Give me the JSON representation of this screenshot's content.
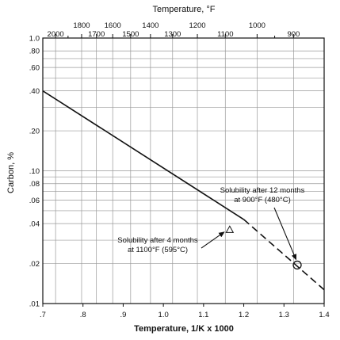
{
  "chart_data": {
    "type": "line",
    "title": "",
    "xlabel": "Temperature, 1/K x 1000",
    "ylabel": "Carbon, %",
    "top_axis_label": "Temperature, °F",
    "xlim": [
      0.7,
      1.4
    ],
    "ylim": [
      0.01,
      1.0
    ],
    "y_scale": "log",
    "grid": true,
    "x_ticks": [
      {
        "value": 0.7,
        "label": ".7"
      },
      {
        "value": 0.8,
        "label": ".8"
      },
      {
        "value": 0.9,
        "label": ".9"
      },
      {
        "value": 1.0,
        "label": "1.0"
      },
      {
        "value": 1.1,
        "label": "1.1"
      },
      {
        "value": 1.2,
        "label": "1.2"
      },
      {
        "value": 1.3,
        "label": "1.3"
      },
      {
        "value": 1.4,
        "label": "1.4"
      }
    ],
    "y_ticks": [
      {
        "value": 1.0,
        "label": "1.0"
      },
      {
        "value": 0.8,
        "label": ".80"
      },
      {
        "value": 0.6,
        "label": ".60"
      },
      {
        "value": 0.4,
        "label": ".40"
      },
      {
        "value": 0.2,
        "label": ".20"
      },
      {
        "value": 0.1,
        "label": ".10"
      },
      {
        "value": 0.08,
        "label": ".08"
      },
      {
        "value": 0.06,
        "label": ".06"
      },
      {
        "value": 0.04,
        "label": ".04"
      },
      {
        "value": 0.02,
        "label": ".02"
      },
      {
        "value": 0.01,
        "label": ".01"
      }
    ],
    "y_minor_gridlines": [
      0.7,
      0.5,
      0.3,
      0.09,
      0.07,
      0.05,
      0.03
    ],
    "top_ticks_upper": [
      {
        "value": 1800,
        "label": "1800"
      },
      {
        "value": 1600,
        "label": "1600"
      },
      {
        "value": 1400,
        "label": "1400"
      },
      {
        "value": 1200,
        "label": "1200"
      },
      {
        "value": 1000,
        "label": "1000"
      }
    ],
    "top_ticks_lower": [
      {
        "value": 2000,
        "label": "2000"
      },
      {
        "value": 1700,
        "label": "1700"
      },
      {
        "value": 1500,
        "label": "1500"
      },
      {
        "value": 1300,
        "label": "1300"
      },
      {
        "value": 1100,
        "label": "1100"
      },
      {
        "value": 900,
        "label": "900"
      }
    ],
    "top_minor_ticks": [
      1900,
      950
    ],
    "series": [
      {
        "style": "solid",
        "x": [
          0.7,
          1.2
        ],
        "y": [
          0.4,
          0.043
        ]
      },
      {
        "style": "dashed",
        "x": [
          1.2,
          1.4
        ],
        "y": [
          0.043,
          0.0127
        ]
      }
    ],
    "markers": [
      {
        "shape": "triangle",
        "x": 1.165,
        "y": 0.036
      },
      {
        "shape": "circle",
        "x": 1.333,
        "y": 0.0195
      }
    ],
    "annotations": [
      {
        "lines": [
          "Solubility after 12 months",
          "at 900°F (480°C)"
        ],
        "target": 1
      },
      {
        "lines": [
          "Solubility after 4 months",
          "at 1100°F (595°C)"
        ],
        "target": 0
      }
    ]
  }
}
